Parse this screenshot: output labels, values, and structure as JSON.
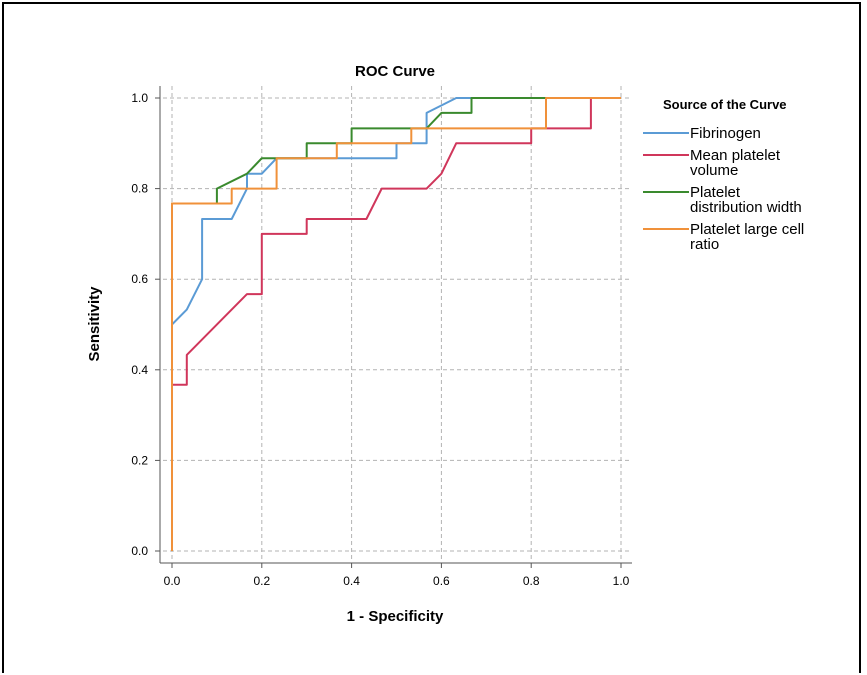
{
  "chart_data": {
    "type": "line",
    "title": "ROC Curve",
    "xlabel": "1 - Specificity",
    "ylabel": "Sensitivity",
    "xlim": [
      0,
      1
    ],
    "ylim": [
      0,
      1
    ],
    "xticks": [
      "0.0",
      "0.2",
      "0.4",
      "0.6",
      "0.8",
      "1.0"
    ],
    "yticks": [
      "0.0",
      "0.2",
      "0.4",
      "0.6",
      "0.8",
      "1.0"
    ],
    "grid": true,
    "legend": {
      "title": "Source of the Curve",
      "placement": "top-right",
      "entries": [
        [
          "Fibrinogen"
        ],
        [
          "Mean platelet",
          "volume"
        ],
        [
          "Platelet",
          "distribution width"
        ],
        [
          "Platelet large cell",
          "ratio"
        ]
      ]
    },
    "series": [
      {
        "name": "Fibrinogen",
        "color": "#5b9bd5",
        "points": [
          [
            0,
            0
          ],
          [
            0,
            0.5
          ],
          [
            0.033,
            0.533
          ],
          [
            0.067,
            0.6
          ],
          [
            0.067,
            0.733
          ],
          [
            0.133,
            0.733
          ],
          [
            0.167,
            0.8
          ],
          [
            0.167,
            0.833
          ],
          [
            0.2,
            0.833
          ],
          [
            0.233,
            0.867
          ],
          [
            0.5,
            0.867
          ],
          [
            0.5,
            0.9
          ],
          [
            0.567,
            0.9
          ],
          [
            0.567,
            0.967
          ],
          [
            0.633,
            1.0
          ],
          [
            1.0,
            1.0
          ]
        ]
      },
      {
        "name": "Mean platelet volume",
        "color": "#d0365b",
        "points": [
          [
            0,
            0
          ],
          [
            0,
            0.367
          ],
          [
            0.033,
            0.367
          ],
          [
            0.033,
            0.433
          ],
          [
            0.167,
            0.567
          ],
          [
            0.2,
            0.567
          ],
          [
            0.2,
            0.7
          ],
          [
            0.3,
            0.7
          ],
          [
            0.3,
            0.733
          ],
          [
            0.433,
            0.733
          ],
          [
            0.467,
            0.8
          ],
          [
            0.567,
            0.8
          ],
          [
            0.6,
            0.833
          ],
          [
            0.633,
            0.9
          ],
          [
            0.8,
            0.9
          ],
          [
            0.8,
            0.933
          ],
          [
            0.933,
            0.933
          ],
          [
            0.933,
            1.0
          ],
          [
            1.0,
            1.0
          ]
        ]
      },
      {
        "name": "Platelet distribution width",
        "color": "#3a8a2e",
        "points": [
          [
            0,
            0
          ],
          [
            0,
            0.767
          ],
          [
            0.1,
            0.767
          ],
          [
            0.1,
            0.8
          ],
          [
            0.167,
            0.833
          ],
          [
            0.2,
            0.867
          ],
          [
            0.3,
            0.867
          ],
          [
            0.3,
            0.9
          ],
          [
            0.4,
            0.9
          ],
          [
            0.4,
            0.933
          ],
          [
            0.567,
            0.933
          ],
          [
            0.6,
            0.967
          ],
          [
            0.667,
            0.967
          ],
          [
            0.667,
            1.0
          ],
          [
            1.0,
            1.0
          ]
        ]
      },
      {
        "name": "Platelet large cell ratio",
        "color": "#f0913a",
        "points": [
          [
            0,
            0
          ],
          [
            0,
            0.767
          ],
          [
            0.133,
            0.767
          ],
          [
            0.133,
            0.8
          ],
          [
            0.233,
            0.8
          ],
          [
            0.233,
            0.867
          ],
          [
            0.367,
            0.867
          ],
          [
            0.367,
            0.9
          ],
          [
            0.533,
            0.9
          ],
          [
            0.533,
            0.933
          ],
          [
            0.833,
            0.933
          ],
          [
            0.833,
            1.0
          ],
          [
            1.0,
            1.0
          ]
        ]
      }
    ]
  }
}
